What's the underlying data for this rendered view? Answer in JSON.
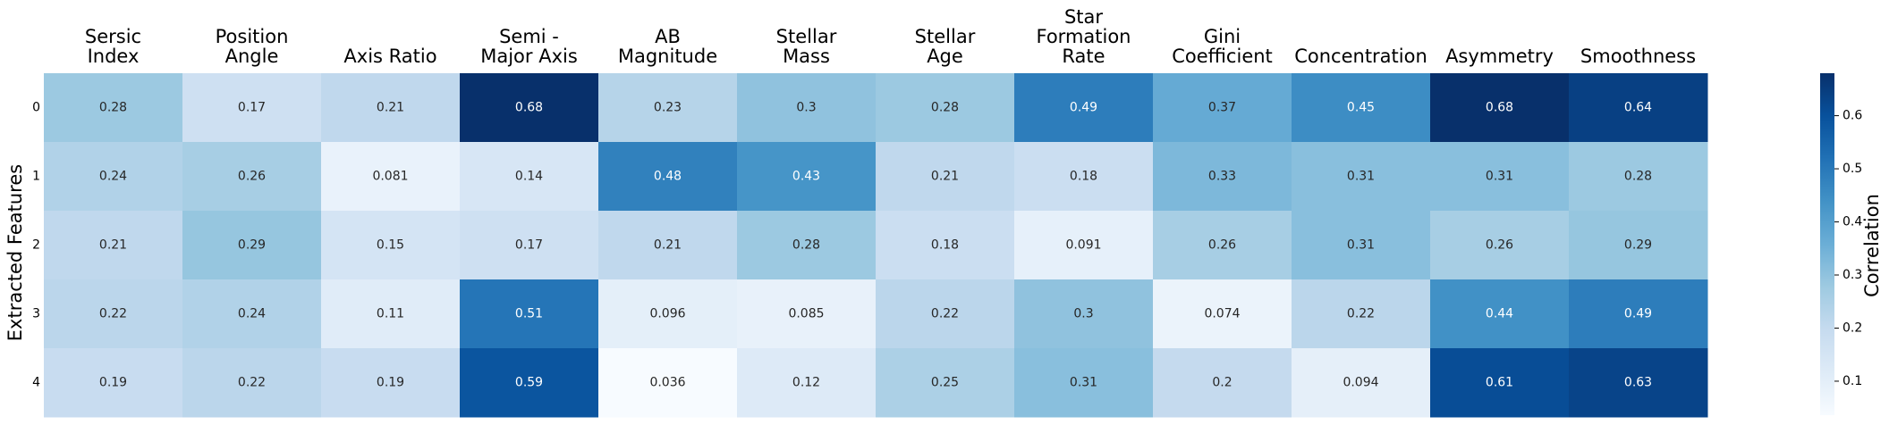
{
  "chart_data": {
    "type": "heatmap",
    "columns": [
      [
        "Sersic",
        "Index"
      ],
      [
        "Position",
        "Angle"
      ],
      [
        "Axis Ratio"
      ],
      [
        "Semi -",
        "Major Axis"
      ],
      [
        "AB",
        "Magnitude"
      ],
      [
        "Stellar",
        "Mass"
      ],
      [
        "Stellar",
        "Age"
      ],
      [
        "Star",
        "Formation",
        "Rate"
      ],
      [
        "Gini",
        "Coefficient"
      ],
      [
        "Concentration"
      ],
      [
        "Asymmetry"
      ],
      [
        "Smoothness"
      ]
    ],
    "rows": [
      "0",
      "1",
      "2",
      "3",
      "4"
    ],
    "values": [
      [
        0.28,
        0.17,
        0.21,
        0.68,
        0.23,
        0.3,
        0.28,
        0.49,
        0.37,
        0.45,
        0.68,
        0.64
      ],
      [
        0.24,
        0.26,
        0.081,
        0.14,
        0.48,
        0.43,
        0.21,
        0.18,
        0.33,
        0.31,
        0.31,
        0.28
      ],
      [
        0.21,
        0.29,
        0.15,
        0.17,
        0.21,
        0.28,
        0.18,
        0.091,
        0.26,
        0.31,
        0.26,
        0.29
      ],
      [
        0.22,
        0.24,
        0.11,
        0.51,
        0.096,
        0.085,
        0.22,
        0.3,
        0.074,
        0.22,
        0.44,
        0.49
      ],
      [
        0.19,
        0.22,
        0.19,
        0.59,
        0.036,
        0.12,
        0.25,
        0.31,
        0.2,
        0.094,
        0.61,
        0.63
      ]
    ],
    "ylabel": "Extracted Features",
    "colorbar_label": "Correlation",
    "colorbar_ticks": [
      "0.1",
      "0.2",
      "0.3",
      "0.4",
      "0.5",
      "0.6"
    ],
    "colormap": "Blues",
    "vmin": 0.036,
    "vmax": 0.68
  }
}
